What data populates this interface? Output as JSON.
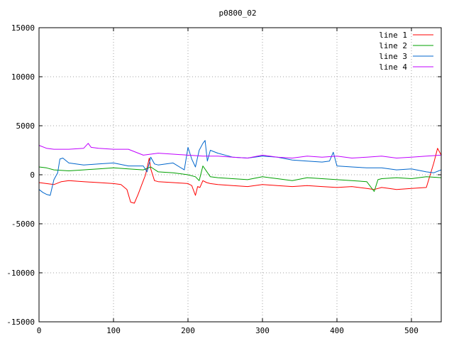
{
  "chart_data": {
    "type": "line",
    "title": "p0800_02",
    "xlim": [
      0,
      540
    ],
    "ylim": [
      -15000,
      15000
    ],
    "x_ticks": [
      0,
      100,
      200,
      300,
      400,
      500
    ],
    "y_ticks": [
      -15000,
      -10000,
      -5000,
      0,
      5000,
      10000,
      15000
    ],
    "grid": true,
    "legend_position": "top-right",
    "series": [
      {
        "name": "line 1",
        "color": "#ff0000",
        "x": [
          0,
          10,
          20,
          30,
          40,
          60,
          80,
          100,
          110,
          118,
          123,
          128,
          133,
          138,
          143,
          148,
          150,
          155,
          160,
          180,
          200,
          205,
          210,
          213,
          216,
          220,
          225,
          230,
          240,
          260,
          280,
          300,
          320,
          340,
          360,
          380,
          400,
          420,
          440,
          450,
          460,
          470,
          480,
          500,
          520,
          530,
          535,
          540
        ],
        "y": [
          -800,
          -900,
          -1000,
          -700,
          -600,
          -700,
          -800,
          -900,
          -1000,
          -1500,
          -2800,
          -2900,
          -2000,
          -1000,
          0,
          1700,
          600,
          -600,
          -700,
          -800,
          -900,
          -1100,
          -2100,
          -1200,
          -1300,
          -600,
          -800,
          -900,
          -1000,
          -1100,
          -1200,
          -1000,
          -1100,
          -1200,
          -1100,
          -1200,
          -1300,
          -1200,
          -1400,
          -1500,
          -1300,
          -1400,
          -1500,
          -1400,
          -1300,
          1200,
          2700,
          2000
        ]
      },
      {
        "name": "line 2",
        "color": "#00a000",
        "x": [
          0,
          10,
          20,
          40,
          60,
          80,
          100,
          120,
          140,
          150,
          160,
          180,
          200,
          210,
          215,
          220,
          230,
          240,
          260,
          280,
          300,
          320,
          340,
          360,
          380,
          400,
          420,
          440,
          450,
          455,
          460,
          480,
          500,
          520,
          540
        ],
        "y": [
          800,
          700,
          500,
          400,
          500,
          600,
          700,
          600,
          500,
          800,
          300,
          200,
          0,
          -200,
          -600,
          900,
          -200,
          -300,
          -400,
          -500,
          -200,
          -400,
          -600,
          -300,
          -400,
          -500,
          -600,
          -700,
          -1700,
          -500,
          -400,
          -300,
          -400,
          -200,
          -300
        ]
      },
      {
        "name": "line 3",
        "color": "#0066cc",
        "x": [
          0,
          5,
          10,
          15,
          20,
          25,
          28,
          32,
          40,
          60,
          80,
          100,
          120,
          140,
          145,
          150,
          155,
          160,
          180,
          195,
          200,
          205,
          210,
          215,
          220,
          223,
          226,
          230,
          240,
          260,
          280,
          300,
          320,
          340,
          360,
          380,
          390,
          395,
          400,
          420,
          440,
          460,
          480,
          500,
          520,
          530,
          540
        ],
        "y": [
          -1500,
          -1800,
          -2000,
          -2100,
          -500,
          200,
          1600,
          1700,
          1200,
          1000,
          1100,
          1200,
          900,
          900,
          300,
          1800,
          1100,
          1000,
          1200,
          500,
          2800,
          1600,
          800,
          2500,
          3200,
          3500,
          1400,
          2500,
          2200,
          1800,
          1700,
          1900,
          1800,
          1500,
          1400,
          1300,
          1400,
          2300,
          900,
          800,
          700,
          700,
          500,
          600,
          300,
          200,
          500
        ]
      },
      {
        "name": "line 4",
        "color": "#c000ff",
        "x": [
          0,
          10,
          20,
          40,
          60,
          66,
          70,
          80,
          100,
          120,
          140,
          160,
          180,
          200,
          220,
          240,
          260,
          280,
          300,
          320,
          340,
          360,
          380,
          400,
          420,
          440,
          460,
          480,
          500,
          520,
          540
        ],
        "y": [
          3000,
          2700,
          2600,
          2600,
          2700,
          3200,
          2800,
          2700,
          2600,
          2600,
          2000,
          2200,
          2100,
          2000,
          1900,
          1900,
          1800,
          1700,
          2000,
          1800,
          1700,
          1900,
          1800,
          1900,
          1700,
          1800,
          1900,
          1700,
          1800,
          1900,
          2000
        ]
      }
    ]
  }
}
